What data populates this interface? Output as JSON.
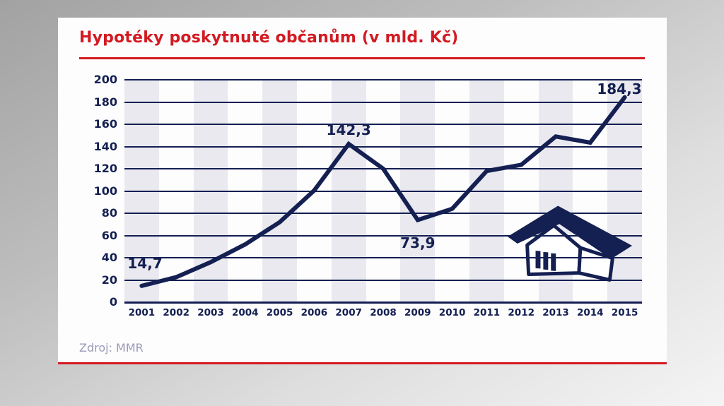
{
  "card": {
    "title": "Hypotéky poskytnuté občanům (v mld. Kč)",
    "source": "Zdroj: MMR"
  },
  "theme": {
    "red": "#d31a22",
    "navy": "#141f52",
    "band": "#e9e9ef",
    "card_bg": "#fdfdfd",
    "source_text": "#9a9ab8"
  },
  "chart_data": {
    "type": "line",
    "title": "Hypotéky poskytnuté občanům (v mld. Kč)",
    "unit": "mld. Kč",
    "categories": [
      "2001",
      "2002",
      "2003",
      "2004",
      "2005",
      "2006",
      "2007",
      "2008",
      "2009",
      "2010",
      "2011",
      "2012",
      "2013",
      "2014",
      "2015"
    ],
    "values": [
      14.7,
      22.5,
      36.0,
      52.0,
      72.0,
      100.5,
      142.3,
      120.0,
      73.9,
      84.0,
      118.0,
      123.5,
      149.0,
      143.5,
      184.3
    ],
    "ylim": [
      0,
      200
    ],
    "ytick_step": 20,
    "grid": "horizontal-only",
    "alternating_column_bands": true,
    "legend": "none",
    "line_color": "#141f52",
    "point_labels": [
      {
        "index": 0,
        "text": "14,7",
        "pos": "above-left"
      },
      {
        "index": 6,
        "text": "142,3",
        "pos": "above"
      },
      {
        "index": 8,
        "text": "73,9",
        "pos": "below"
      },
      {
        "index": 14,
        "text": "184,3",
        "pos": "above-right"
      }
    ],
    "source": "Zdroj: MMR"
  }
}
